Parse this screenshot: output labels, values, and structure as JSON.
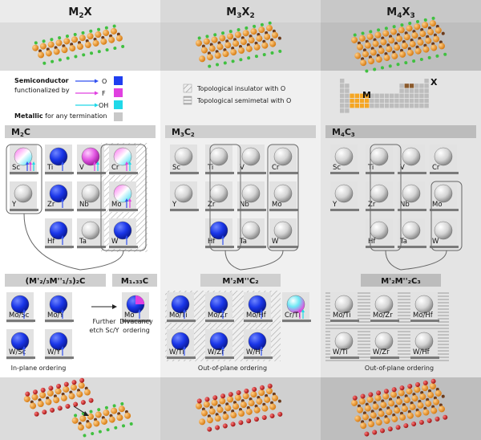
{
  "columns": [
    {
      "title_main": "M",
      "title_sub1": "2",
      "title_mid": "X",
      "title_sub2": ""
    },
    {
      "title_main": "M",
      "title_sub1": "3",
      "title_mid": "X",
      "title_sub2": "2"
    },
    {
      "title_main": "M",
      "title_sub1": "4",
      "title_mid": "X",
      "title_sub2": "3"
    }
  ],
  "legend": {
    "semiconductor": "Semiconductor",
    "functionalized_by": "functionalized by",
    "metallic": "Metallic",
    "metallic_rest": "for any termination",
    "o": "O",
    "f": "F",
    "oh": "OH",
    "topo_insulator": "Topological insulator with O",
    "topo_semimetal": "Topological semimetal with O",
    "periodic_m": "M",
    "periodic_x": "X"
  },
  "colors": {
    "semiconductor_o": "#1f3ff0",
    "semiconductor_f": "#e040e0",
    "semiconductor_oh": "#20d8e8",
    "metallic": "#c8c8c8",
    "metal_atom": "#f0a030",
    "c_atom": "#6b3a1a",
    "o_atom": "#d02020",
    "h_atom": "#40c040"
  },
  "sections": {
    "m2c": {
      "main": "M",
      "sub": "2",
      "tail": "C"
    },
    "m3c2": {
      "main": "M",
      "sub": "3",
      "mid": "C",
      "sub2": "2"
    },
    "m4c3": {
      "main": "M",
      "sub": "4",
      "mid": "C",
      "sub2": "3"
    }
  },
  "m2c_elements": [
    "Sc",
    "Ti",
    "V",
    "Cr",
    "Y",
    "Zr",
    "Nb",
    "Mo",
    "Hf",
    "Ta",
    "W"
  ],
  "m3c2_elements": [
    "Sc",
    "Ti",
    "V",
    "Cr",
    "Y",
    "Zr",
    "Nb",
    "Mo",
    "Hf",
    "Ta",
    "W"
  ],
  "m4c3_elements": [
    "Sc",
    "Ti",
    "V",
    "Cr",
    "Y",
    "Zr",
    "Nb",
    "Mo",
    "Hf",
    "Ta",
    "W"
  ],
  "inplane": {
    "formula": "(M'₂/₃M''₁/₃)₂C",
    "items": [
      "Mo/Sc",
      "Mo/Y",
      "W/Sc",
      "W/Y"
    ],
    "footer": "In-plane ordering"
  },
  "vacancy": {
    "formula": "M₁.₃₃C",
    "item": "Mo",
    "step1": "Further",
    "step2": "etch Sc/Y",
    "note1": "Divacancy",
    "note2": "ordering"
  },
  "outplane_m3": {
    "formula": "M'₂M''C₂",
    "items": [
      "Mo/Ti",
      "Mo/Zr",
      "Mo/Hf",
      "W/Ti",
      "W/Zr",
      "W/Hf"
    ],
    "extra": "Cr/Ti",
    "footer": "Out-of-plane ordering"
  },
  "outplane_m4": {
    "formula": "M'₂M''₂C₃",
    "items": [
      "Mo/Ti",
      "Mo/Zr",
      "Mo/Hf",
      "W/Ti",
      "W/Zr",
      "W/Hf"
    ],
    "footer": "Out-of-plane ordering"
  }
}
